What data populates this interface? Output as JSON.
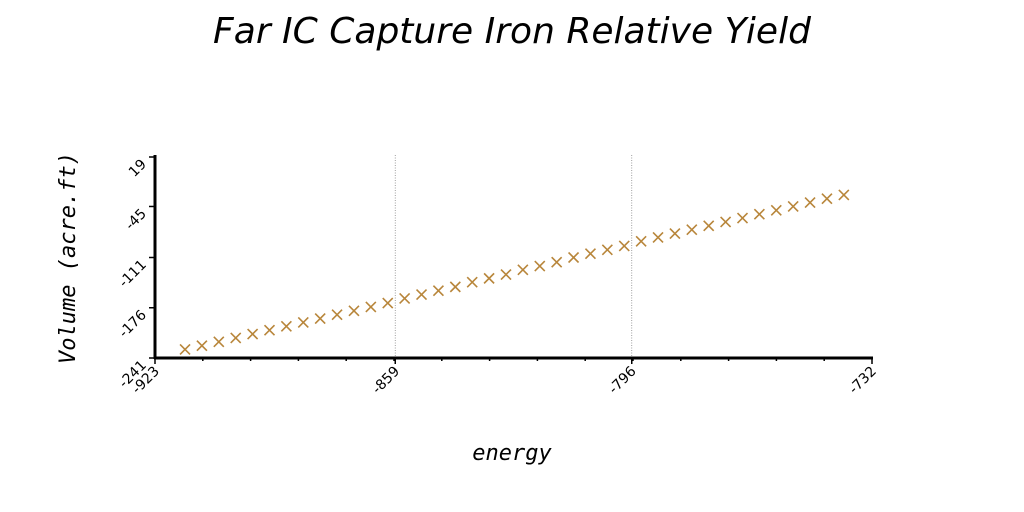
{
  "chart_data": {
    "type": "scatter",
    "title": "Far IC Capture Iron Relative Yield",
    "xlabel": "energy",
    "ylabel": "Volume (acre.ft)",
    "xlim": [
      -923,
      -732
    ],
    "ylim": [
      -241,
      19
    ],
    "xticks": [
      "-923",
      "-859",
      "-796",
      "-732"
    ],
    "yticks": [
      "-241",
      "-176",
      "-111",
      "-45",
      "19"
    ],
    "grid": "x-major",
    "marker": "x",
    "color": "#b8863b",
    "series": [
      {
        "x": [
          -915,
          -910.5,
          -906,
          -901.5,
          -897,
          -892.5,
          -888,
          -883.5,
          -879,
          -874.5,
          -870,
          -865.5,
          -861,
          -856.5,
          -852,
          -847.5,
          -843,
          -838.5,
          -834,
          -829.5,
          -825,
          -820.5,
          -816,
          -811.5,
          -807,
          -802.5,
          -798,
          -793.5,
          -789,
          -784.5,
          -780,
          -775.5,
          -771,
          -766.5,
          -762,
          -757.5,
          -753,
          -748.5,
          -744,
          -739.5
        ],
        "y": [
          -230,
          -225,
          -220,
          -215,
          -210,
          -205,
          -200,
          -195,
          -190,
          -185,
          -180,
          -175,
          -170,
          -164,
          -159,
          -154,
          -149,
          -143,
          -138,
          -133,
          -127,
          -122,
          -117,
          -111,
          -106,
          -101,
          -96,
          -90,
          -85,
          -80,
          -75,
          -70,
          -65,
          -60,
          -55,
          -50,
          -45,
          -40,
          -35,
          -30
        ]
      }
    ]
  }
}
